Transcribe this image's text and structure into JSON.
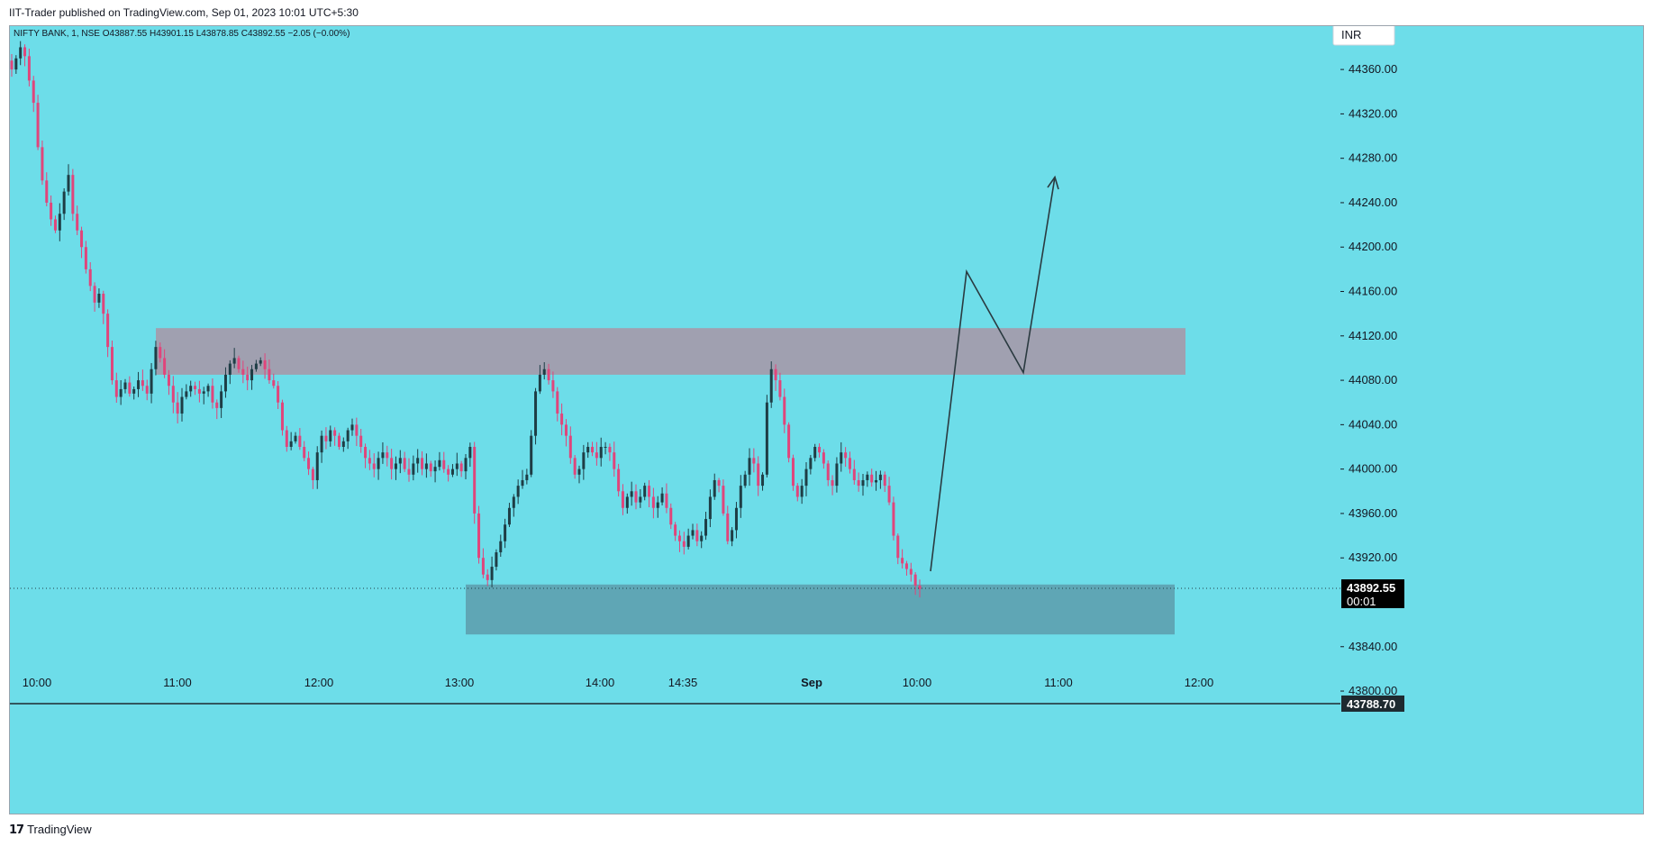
{
  "header": {
    "publisher_text": "IIT-Trader published on TradingView.com, Sep 01, 2023 10:01 UTC+5:30"
  },
  "footer": {
    "brand": "TradingView"
  },
  "chart_data": {
    "type": "candlestick",
    "symbol_line": "NIFTY BANK, 1, NSE  O43887.55  H43901.15  L43878.85  C43892.55  −2.05 (−0.00%)",
    "currency": "INR",
    "colors": {
      "background": "#6ddde9",
      "up": "#1e3d45",
      "down": "#e0457b",
      "resistance_zone": "#a0a0b0",
      "support_zone": "#5fa6b5",
      "arrow": "#2a3a40"
    },
    "ylim": [
      43770,
      44395
    ],
    "y_ticks": [
      "44360.00",
      "44320.00",
      "44280.00",
      "44240.00",
      "44200.00",
      "44160.00",
      "44120.00",
      "44080.00",
      "44040.00",
      "44000.00",
      "43960.00",
      "43920.00",
      "43840.00",
      "43800.00"
    ],
    "x_ticks": [
      "10:00",
      "11:00",
      "12:00",
      "13:00",
      "14:00",
      "14:35",
      "Sep",
      "10:00",
      "11:00",
      "12:00"
    ],
    "price_labels": {
      "last_price": "43892.55",
      "countdown": "00:01",
      "horizontal_line": "43788.70"
    },
    "zones": [
      {
        "name": "resistance",
        "start": "10:53",
        "end": "12:00 (next day)",
        "top": 44127,
        "bottom": 44085
      },
      {
        "name": "support",
        "start": "13:04",
        "end": "11:48 (next day)",
        "top": 43896,
        "bottom": 43851
      }
    ],
    "projected_path": [
      {
        "time": "10:08",
        "price": 43908
      },
      {
        "time": "10:35",
        "price": 44178
      },
      {
        "time": "10:59",
        "price": 44087
      },
      {
        "time": "11:10",
        "price": 44263
      }
    ],
    "series_close": [
      44360,
      44370,
      44380,
      44372,
      44350,
      44330,
      44290,
      44260,
      44240,
      44225,
      44215,
      44230,
      44250,
      44265,
      44230,
      44215,
      44200,
      44180,
      44165,
      44150,
      44158,
      44140,
      44110,
      44080,
      44065,
      44072,
      44078,
      44068,
      44072,
      44080,
      44075,
      44068,
      44090,
      44110,
      44100,
      44085,
      44075,
      44060,
      44050,
      44065,
      44070,
      44075,
      44072,
      44068,
      44070,
      44075,
      44060,
      44055,
      44070,
      44085,
      44095,
      44100,
      44090,
      44085,
      44080,
      44090,
      44095,
      44098,
      44090,
      44080,
      44075,
      44060,
      44035,
      44020,
      44025,
      44030,
      44020,
      44010,
      44000,
      43990,
      44015,
      44030,
      44025,
      44035,
      44030,
      44020,
      44025,
      44035,
      44040,
      44030,
      44020,
      44010,
      44005,
      44000,
      44010,
      44015,
      44010,
      44000,
      44005,
      44010,
      44000,
      43995,
      44005,
      44010,
      44000,
      44005,
      43998,
      44002,
      44008,
      44000,
      43995,
      44000,
      44005,
      43998,
      44010,
      44020,
      43960,
      43920,
      43905,
      43900,
      43912,
      43925,
      43935,
      43950,
      43965,
      43975,
      43985,
      43990,
      43995,
      44030,
      44070,
      44085,
      44090,
      44080,
      44070,
      44050,
      44040,
      44030,
      44010,
      43995,
      44000,
      44015,
      44020,
      44015,
      44010,
      44020,
      44020,
      44015,
      44000,
      43980,
      43965,
      43975,
      43980,
      43970,
      43975,
      43985,
      43975,
      43965,
      43970,
      43978,
      43965,
      43950,
      43940,
      43935,
      43930,
      43940,
      43945,
      43935,
      43940,
      43955,
      43975,
      43990,
      43985,
      43960,
      43935,
      43945,
      43965,
      43985,
      43995,
      44010,
      44005,
      43985,
      43995,
      44060,
      44090,
      44080,
      44065,
      44040,
      44010,
      43985,
      43975,
      43985,
      44000,
      44010,
      44020,
      44015,
      44005,
      43990,
      43985,
      44005,
      44015,
      44010,
      44000,
      43990,
      43985,
      43990,
      43995,
      43988,
      43990,
      43995,
      43985,
      43970,
      43940,
      43920,
      43915,
      43910,
      43905,
      43895,
      43892
    ]
  }
}
